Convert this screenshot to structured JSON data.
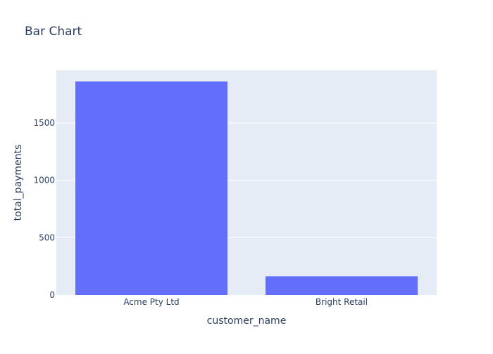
{
  "chart_data": {
    "type": "bar",
    "title": "Bar Chart",
    "xlabel": "customer_name",
    "ylabel": "total_payments",
    "categories": [
      "Acme Pty Ltd",
      "Bright Retail"
    ],
    "values": [
      1862,
      163
    ],
    "ylim": [
      0,
      1960
    ],
    "yticks": [
      0,
      500,
      1000,
      1500
    ],
    "ytick_labels": [
      "0",
      "500",
      "1000",
      "1500"
    ],
    "grid": true,
    "legend": "none",
    "colors": {
      "bar": "#636efa",
      "plot_background": "#e5ecf6",
      "grid": "#ffffff",
      "text": "#2a3f5f",
      "tick_text": "#2a3f5f"
    }
  }
}
